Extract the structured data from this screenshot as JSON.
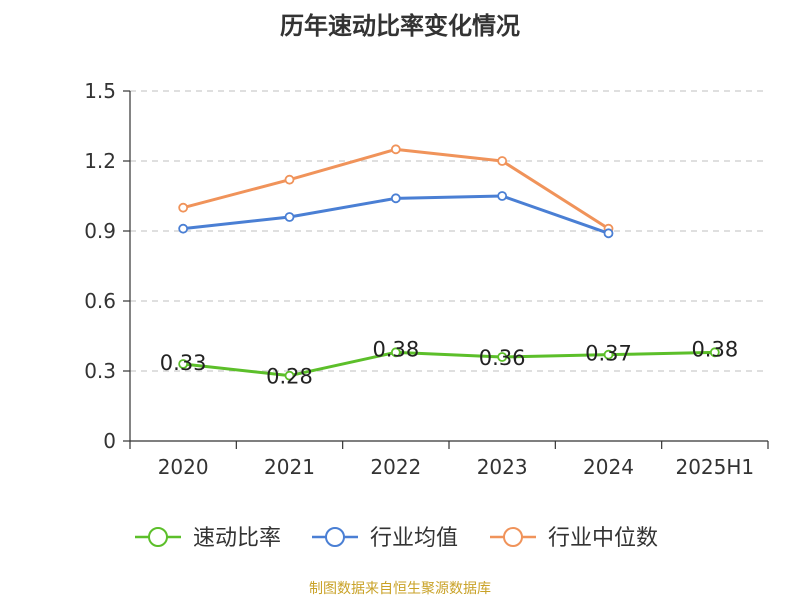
{
  "title": "历年速动比率变化情况",
  "source_note": "制图数据来自恒生聚源数据库",
  "chart_data": {
    "type": "line",
    "title": "历年速动比率变化情况",
    "categories": [
      "2020",
      "2021",
      "2022",
      "2023",
      "2024",
      "2025H1"
    ],
    "y_ticks": [
      "0",
      "0.3",
      "0.6",
      "0.9",
      "1.2",
      "1.5"
    ],
    "ylim": [
      0,
      1.5
    ],
    "grid": true,
    "legend_position": "bottom",
    "series": [
      {
        "name": "速动比率",
        "color": "#5cbf2a",
        "values": [
          0.33,
          0.28,
          0.38,
          0.36,
          0.37,
          0.38
        ],
        "labels": [
          "0.33",
          "0.28",
          "0.38",
          "0.36",
          "0.37",
          "0.38"
        ]
      },
      {
        "name": "行业均值",
        "color": "#4a7fd4",
        "values": [
          0.91,
          0.96,
          1.04,
          1.05,
          0.89,
          null
        ]
      },
      {
        "name": "行业中位数",
        "color": "#f0935a",
        "values": [
          1.0,
          1.12,
          1.25,
          1.2,
          0.91,
          null
        ]
      }
    ]
  }
}
